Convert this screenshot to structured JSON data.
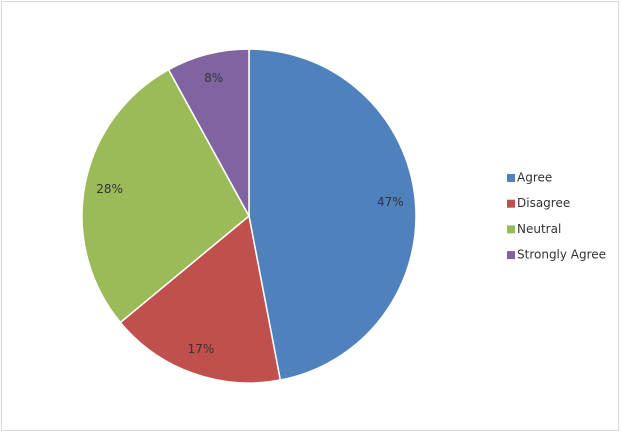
{
  "chart_data": {
    "type": "pie",
    "categories": [
      "Agree",
      "Disagree",
      "Neutral",
      "Strongly Agree"
    ],
    "values": [
      47,
      17,
      28,
      8
    ],
    "value_labels": [
      "47%",
      "17%",
      "28%",
      "8%"
    ],
    "colors": [
      "#4f81bd",
      "#c0504d",
      "#9bbb59",
      "#8064a2"
    ],
    "legend": "right"
  }
}
